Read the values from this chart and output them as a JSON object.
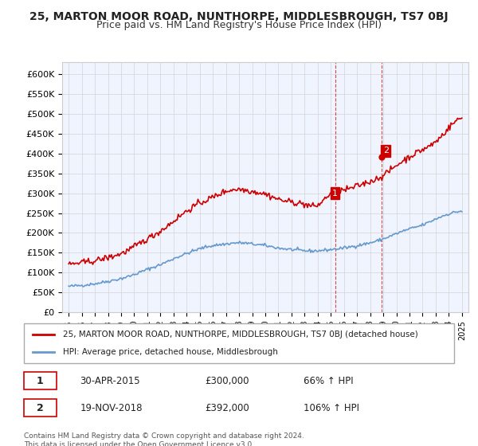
{
  "title": "25, MARTON MOOR ROAD, NUNTHORPE, MIDDLESBROUGH, TS7 0BJ",
  "subtitle": "Price paid vs. HM Land Registry's House Price Index (HPI)",
  "legend_line1": "25, MARTON MOOR ROAD, NUNTHORPE, MIDDLESBROUGH, TS7 0BJ (detached house)",
  "legend_line2": "HPI: Average price, detached house, Middlesbrough",
  "annotation1_label": "1",
  "annotation1_date": "30-APR-2015",
  "annotation1_price": "£300,000",
  "annotation1_pct": "66% ↑ HPI",
  "annotation2_label": "2",
  "annotation2_date": "19-NOV-2018",
  "annotation2_price": "£392,000",
  "annotation2_pct": "106% ↑ HPI",
  "footer": "Contains HM Land Registry data © Crown copyright and database right 2024.\nThis data is licensed under the Open Government Licence v3.0.",
  "hpi_color": "#6699cc",
  "price_color": "#cc0000",
  "annotation_color": "#cc0000",
  "background_color": "#ffffff",
  "plot_bg_color": "#f0f4ff",
  "grid_color": "#cccccc",
  "ylim": [
    0,
    630000
  ],
  "yticks": [
    0,
    50000,
    100000,
    150000,
    200000,
    250000,
    300000,
    350000,
    400000,
    450000,
    500000,
    550000,
    600000
  ],
  "xlabel_fontsize": 8,
  "ylabel_fontsize": 8,
  "title_fontsize": 10,
  "subtitle_fontsize": 9
}
